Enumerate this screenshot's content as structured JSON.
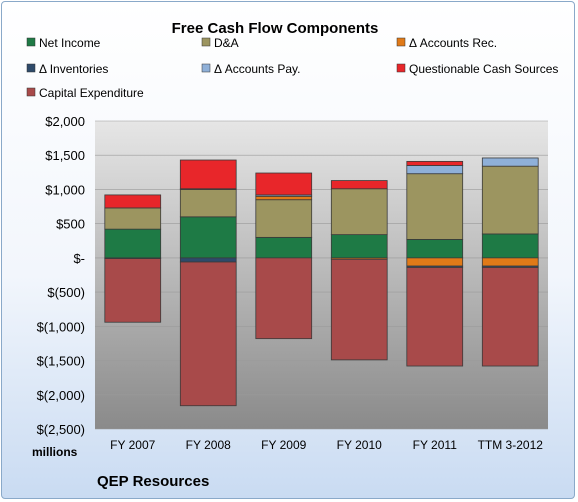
{
  "chart_data": {
    "type": "bar",
    "stacked": true,
    "title": "Free Cash Flow Components",
    "categories": [
      "FY 2007",
      "FY 2008",
      "FY 2009",
      "FY 2010",
      "FY 2011",
      "TTM 3-2012"
    ],
    "ylabel": "millions",
    "yticks": [
      2000,
      1500,
      1000,
      500,
      0,
      -500,
      -1000,
      -1500,
      -2000,
      -2500
    ],
    "ytick_labels": [
      "$2,000",
      "$1,500",
      "$1,000",
      "$500",
      "$-",
      "$(500)",
      "$(1,000)",
      "$(1,500)",
      "$(2,000)",
      "$(2,500)"
    ],
    "ylim": [
      -2500,
      2000
    ],
    "legend_position": "top",
    "footer": "QEP Resources",
    "series": [
      {
        "name": "Net Income",
        "color": "#1e7a45",
        "values": [
          420,
          600,
          300,
          340,
          270,
          350
        ]
      },
      {
        "name": "D&A",
        "color": "#9c9560",
        "values": [
          310,
          400,
          550,
          670,
          960,
          990
        ]
      },
      {
        "name": "Δ Accounts Rec.",
        "color": "#e07a18",
        "values": [
          0,
          10,
          50,
          -20,
          -120,
          -120
        ]
      },
      {
        "name": "Δ Inventories",
        "color": "#2e4a6a",
        "values": [
          -10,
          -60,
          0,
          0,
          -20,
          -20
        ]
      },
      {
        "name": "Δ Accounts Pay.",
        "color": "#8fb0d8",
        "values": [
          0,
          0,
          20,
          0,
          120,
          120
        ]
      },
      {
        "name": "Questionable Cash Sources",
        "color": "#e8262a",
        "values": [
          190,
          420,
          320,
          120,
          60,
          0
        ]
      },
      {
        "name": "Capital Expenditure",
        "color": "#a84a4a",
        "values": [
          -930,
          -2100,
          -1180,
          -1470,
          -1440,
          -1440
        ]
      }
    ]
  }
}
